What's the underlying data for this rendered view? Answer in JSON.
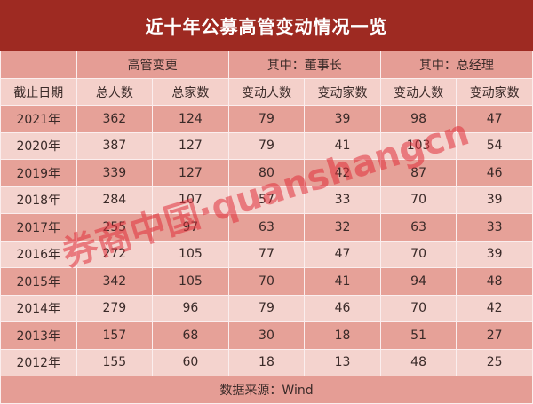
{
  "title": "近十年公募高管变动情况一览",
  "chart_data": {
    "type": "table",
    "title": "近十年公募高管变动情况一览",
    "group_headers": [
      "高管变更",
      "其中：董事长",
      "其中：总经理"
    ],
    "columns": [
      "截止日期",
      "总人数",
      "总家数",
      "变动人数",
      "变动家数",
      "变动人数",
      "变动家数"
    ],
    "rows": [
      [
        "2021年",
        362,
        124,
        79,
        39,
        98,
        47
      ],
      [
        "2020年",
        387,
        127,
        79,
        41,
        103,
        54
      ],
      [
        "2019年",
        339,
        127,
        80,
        42,
        87,
        46
      ],
      [
        "2018年",
        284,
        107,
        57,
        33,
        70,
        39
      ],
      [
        "2017年",
        255,
        97,
        63,
        32,
        63,
        33
      ],
      [
        "2016年",
        272,
        105,
        77,
        47,
        70,
        39
      ],
      [
        "2015年",
        342,
        105,
        70,
        41,
        94,
        48
      ],
      [
        "2014年",
        279,
        96,
        79,
        46,
        70,
        42
      ],
      [
        "2013年",
        157,
        68,
        30,
        18,
        51,
        27
      ],
      [
        "2012年",
        155,
        60,
        18,
        13,
        48,
        25
      ]
    ],
    "source": "数据来源：Wind"
  },
  "watermark": "券商中国·quanshangcn",
  "colors": {
    "title_bg": "#9e2a22",
    "header_bg": "#e59d95",
    "subheader_bg": "#f4d0ca",
    "row_dark": "#e6a198",
    "row_light": "#f4d3ce",
    "watermark": "#e0303a"
  }
}
